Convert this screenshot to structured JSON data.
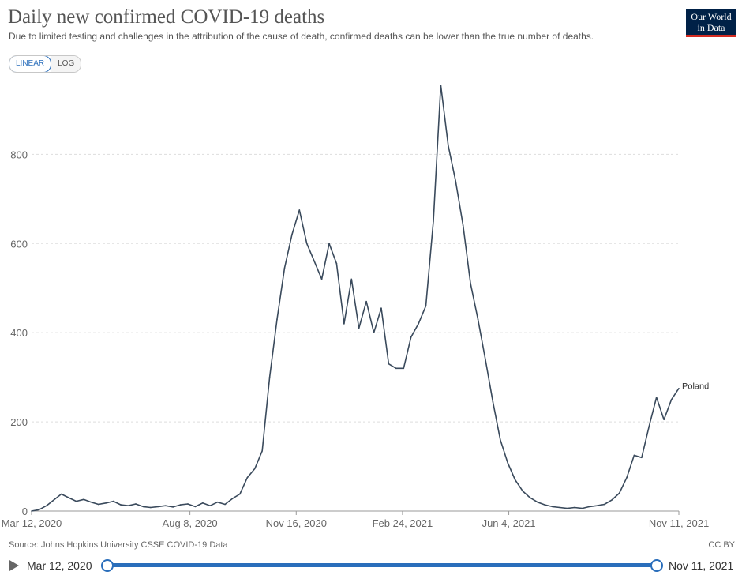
{
  "header": {
    "title": "Daily new confirmed COVID-19 deaths",
    "subtitle": "Due to limited testing and challenges in the attribution of the cause of death, confirmed deaths can be lower than the true number of deaths."
  },
  "logo": {
    "line1": "Our World",
    "line2": "in Data"
  },
  "controls": {
    "linear_label": "LINEAR",
    "log_label": "LOG",
    "selected": "linear"
  },
  "footer": {
    "source": "Source: Johns Hopkins University CSSE COVID-19 Data",
    "license": "CC BY"
  },
  "timeline": {
    "start": "Mar 12, 2020",
    "end": "Nov 11, 2021",
    "range_start_fraction": 0,
    "range_end_fraction": 1
  },
  "colors": {
    "series": "#3a4a5c",
    "grid": "#dddddd",
    "accent": "#2a6ebb",
    "logo_bg": "#002147",
    "logo_bar": "#d42b21"
  },
  "chart_data": {
    "type": "line",
    "title": "Daily new confirmed COVID-19 deaths",
    "ylim": [
      0,
      960
    ],
    "yticks": [
      0,
      200,
      400,
      600,
      800
    ],
    "x_start": "2020-03-12",
    "x_end": "2021-11-11",
    "xtick_labels": [
      "Mar 12, 2020",
      "Aug 8, 2020",
      "Nov 16, 2020",
      "Feb 24, 2021",
      "Jun 4, 2021",
      "Nov 11, 2021"
    ],
    "xtick_dates": [
      "2020-03-12",
      "2020-08-08",
      "2020-11-16",
      "2021-02-24",
      "2021-06-04",
      "2021-11-11"
    ],
    "grid": true,
    "series": [
      {
        "name": "Poland",
        "sampling": "weekly",
        "dates": [
          "2020-03-12",
          "2020-03-19",
          "2020-03-26",
          "2020-04-02",
          "2020-04-09",
          "2020-04-16",
          "2020-04-23",
          "2020-04-30",
          "2020-05-07",
          "2020-05-14",
          "2020-05-21",
          "2020-05-28",
          "2020-06-04",
          "2020-06-11",
          "2020-06-18",
          "2020-06-25",
          "2020-07-02",
          "2020-07-09",
          "2020-07-16",
          "2020-07-23",
          "2020-07-30",
          "2020-08-06",
          "2020-08-13",
          "2020-08-20",
          "2020-08-27",
          "2020-09-03",
          "2020-09-10",
          "2020-09-17",
          "2020-09-24",
          "2020-10-01",
          "2020-10-08",
          "2020-10-15",
          "2020-10-22",
          "2020-10-29",
          "2020-11-05",
          "2020-11-12",
          "2020-11-19",
          "2020-11-26",
          "2020-12-03",
          "2020-12-10",
          "2020-12-17",
          "2020-12-24",
          "2020-12-31",
          "2021-01-07",
          "2021-01-14",
          "2021-01-21",
          "2021-01-28",
          "2021-02-04",
          "2021-02-11",
          "2021-02-18",
          "2021-02-25",
          "2021-03-04",
          "2021-03-11",
          "2021-03-18",
          "2021-03-25",
          "2021-04-01",
          "2021-04-08",
          "2021-04-15",
          "2021-04-22",
          "2021-04-29",
          "2021-05-06",
          "2021-05-13",
          "2021-05-20",
          "2021-05-27",
          "2021-06-03",
          "2021-06-10",
          "2021-06-17",
          "2021-06-24",
          "2021-07-01",
          "2021-07-08",
          "2021-07-15",
          "2021-07-22",
          "2021-07-29",
          "2021-08-05",
          "2021-08-12",
          "2021-08-19",
          "2021-08-26",
          "2021-09-02",
          "2021-09-09",
          "2021-09-16",
          "2021-09-23",
          "2021-09-30",
          "2021-10-07",
          "2021-10-14",
          "2021-10-21",
          "2021-10-28",
          "2021-11-04",
          "2021-11-11"
        ],
        "values": [
          0,
          3,
          12,
          25,
          38,
          30,
          22,
          26,
          20,
          15,
          18,
          22,
          14,
          12,
          16,
          10,
          8,
          10,
          12,
          9,
          14,
          16,
          10,
          18,
          12,
          20,
          15,
          28,
          38,
          75,
          95,
          135,
          300,
          430,
          545,
          620,
          675,
          600,
          560,
          520,
          600,
          555,
          420,
          520,
          410,
          470,
          400,
          455,
          330,
          320,
          320,
          390,
          420,
          460,
          650,
          955,
          820,
          740,
          640,
          510,
          430,
          340,
          245,
          160,
          108,
          70,
          45,
          30,
          20,
          14,
          10,
          8,
          6,
          8,
          6,
          10,
          12,
          15,
          25,
          40,
          75,
          125,
          120,
          190,
          255,
          205,
          250,
          275
        ]
      }
    ],
    "annotations": [
      {
        "series": "Poland",
        "label": "Poland"
      }
    ]
  }
}
